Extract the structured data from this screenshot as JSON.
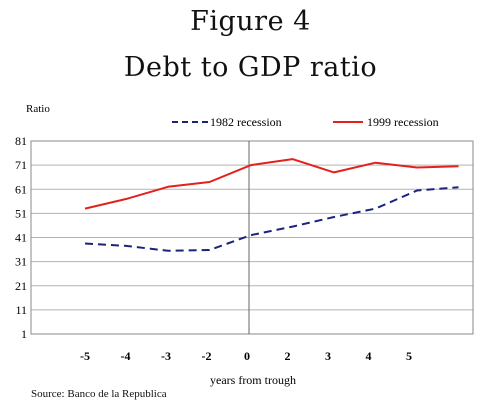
{
  "header": {
    "figure_number": "Figure 4",
    "title": "Debt to GDP ratio"
  },
  "source": "Source: Banco de la Republica",
  "chart_data": {
    "type": "line",
    "title": "Debt to GDP ratio",
    "ylabel": "Ratio",
    "xlabel": "years from trough",
    "x_tick_labels": [
      "-5",
      "-4",
      "-3",
      "-2",
      "0",
      "2",
      "3",
      "4",
      "5"
    ],
    "y_ticks": [
      1,
      11,
      21,
      31,
      41,
      51,
      61,
      71,
      81
    ],
    "ylim": [
      1,
      81
    ],
    "grid": true,
    "legend_position": "top",
    "series": [
      {
        "name": "1982 recession",
        "style": "dashed",
        "color": "#1a237e",
        "values": [
          38.5,
          37.5,
          35.5,
          35.8,
          42,
          45.5,
          49.5,
          53,
          60.5,
          61.8
        ]
      },
      {
        "name": "1999 recession",
        "style": "solid",
        "color": "#e3211c",
        "values": [
          53,
          57,
          62,
          64,
          71,
          73.5,
          68,
          72,
          70,
          70.5
        ]
      }
    ]
  }
}
